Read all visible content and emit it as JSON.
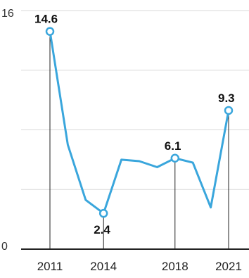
{
  "chart_data": {
    "type": "line",
    "title": "",
    "xlabel": "",
    "ylabel": "",
    "ylim": [
      0,
      16
    ],
    "y_ticks": [
      0,
      16
    ],
    "grid": true,
    "series_color": "#3aa6dc",
    "x_tick_labels": [
      "2011",
      "2014",
      "2018",
      "2021"
    ],
    "series": [
      {
        "x": [
          2011,
          2012,
          2013,
          2014,
          2015,
          2016,
          2017,
          2018,
          2019,
          2020,
          2021
        ],
        "values": [
          14.6,
          7.0,
          3.3,
          2.4,
          6.0,
          5.9,
          5.5,
          6.1,
          5.8,
          2.8,
          9.3
        ]
      }
    ],
    "annotations": [
      {
        "x": 2011,
        "label": "14.6"
      },
      {
        "x": 2014,
        "label": "2.4"
      },
      {
        "x": 2018,
        "label": "6.1"
      },
      {
        "x": 2021,
        "label": "9.3"
      }
    ]
  }
}
